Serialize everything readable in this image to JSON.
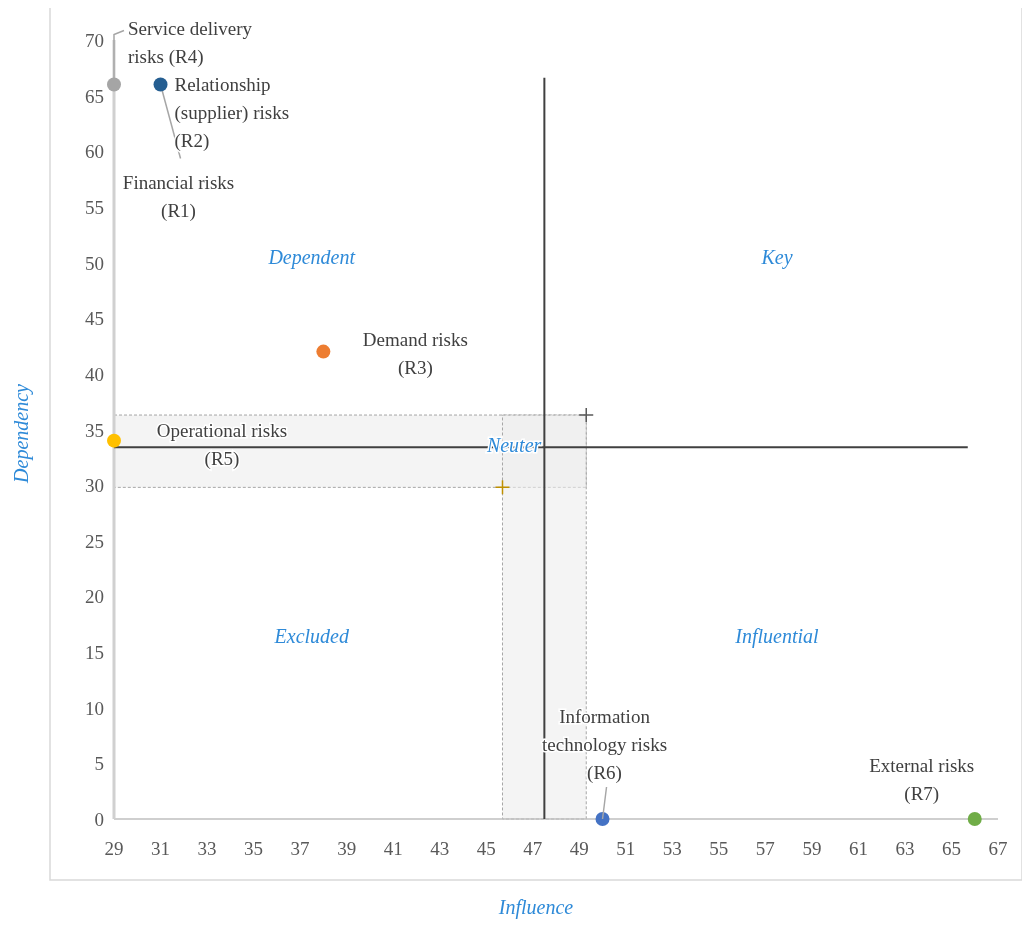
{
  "chart_data": {
    "type": "scatter",
    "xlabel": "Influence",
    "ylabel": "Dependency",
    "xlim": [
      29,
      67
    ],
    "ylim": [
      0,
      70
    ],
    "xticks": [
      29,
      31,
      33,
      35,
      37,
      39,
      41,
      43,
      45,
      47,
      49,
      51,
      53,
      55,
      57,
      59,
      61,
      63,
      65,
      67
    ],
    "yticks": [
      0,
      5,
      10,
      15,
      20,
      25,
      30,
      35,
      40,
      45,
      50,
      55,
      60,
      65,
      70
    ],
    "grid": false,
    "legend": false,
    "marker": "circle",
    "series": [
      {
        "name": "Service delivery risks (R4)",
        "color": "#a5a5a5",
        "x": [
          29
        ],
        "values": [
          66
        ]
      },
      {
        "name": "Relationship (supplier) risks (R2)",
        "color": "#255e91",
        "x": [
          31
        ],
        "values": [
          66
        ]
      },
      {
        "name": "Demand risks (R3)",
        "color": "#ed7d31",
        "x": [
          38
        ],
        "values": [
          42
        ]
      },
      {
        "name": "Operational risks (R5)",
        "color": "#ffc000",
        "x": [
          29
        ],
        "values": [
          34
        ]
      },
      {
        "name": "Information technology risks (R6)",
        "color": "#4472c4",
        "x": [
          50
        ],
        "values": [
          0
        ]
      },
      {
        "name": "External risks (R7)",
        "color": "#70ad47",
        "x": [
          66
        ],
        "values": [
          0
        ]
      },
      {
        "marker": "cross",
        "colors": [
          "#595959",
          "#bf9000"
        ],
        "x": [
          49.3,
          45.7
        ],
        "values": [
          36.3,
          29.8
        ]
      }
    ],
    "ref_lines": [
      {
        "axis": "x",
        "value": 47.5,
        "color": "#404040"
      },
      {
        "axis": "y",
        "value": 33.4,
        "color": "#404040"
      }
    ],
    "bands": [
      {
        "axis": "y",
        "from": 29.8,
        "to": 36.3,
        "color": "#ededed"
      },
      {
        "axis": "x",
        "from": 45.7,
        "to": 49.3,
        "color": "#ededed"
      }
    ],
    "annotations": [
      "Dependent",
      "Key",
      {
        "text": "Neuter",
        "x": 46.2,
        "y": 33.6
      },
      "Excluded",
      "Influential",
      {
        "text": "Financial risks (R1)",
        "x": 31,
        "y": 66
      }
    ]
  }
}
